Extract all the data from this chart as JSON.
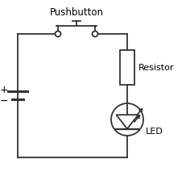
{
  "bg_color": "#ffffff",
  "line_color": "#333333",
  "title": "Pushbutton",
  "resistor_label": "Resistor",
  "led_label": "LED",
  "battery_plus": "+",
  "battery_minus": "−",
  "figsize": [
    2.31,
    2.18
  ],
  "dpi": 100
}
